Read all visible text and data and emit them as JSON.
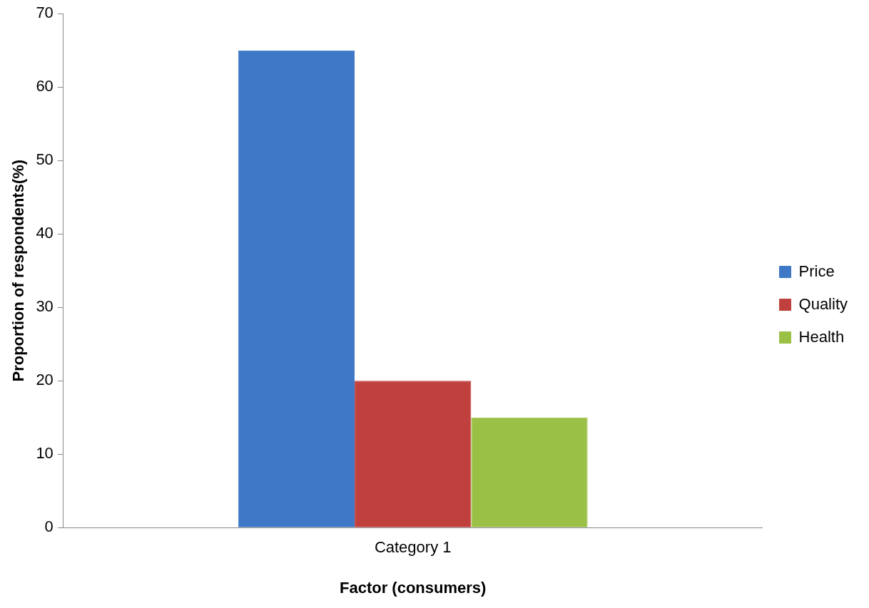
{
  "chart_data": {
    "type": "bar",
    "xlabel": "Factor (consumers)",
    "ylabel": "Proportion of respondents(%)",
    "categories": [
      "Category 1"
    ],
    "series": [
      {
        "name": "Price",
        "color": "#3f78c6",
        "values": [
          65
        ]
      },
      {
        "name": "Quality",
        "color": "#c0403d",
        "values": [
          20
        ]
      },
      {
        "name": "Health",
        "color": "#9bc046",
        "values": [
          15
        ]
      }
    ],
    "ylim": [
      0,
      70
    ],
    "yticks": [
      0,
      10,
      20,
      30,
      40,
      50,
      60,
      70
    ],
    "legend": "right"
  }
}
